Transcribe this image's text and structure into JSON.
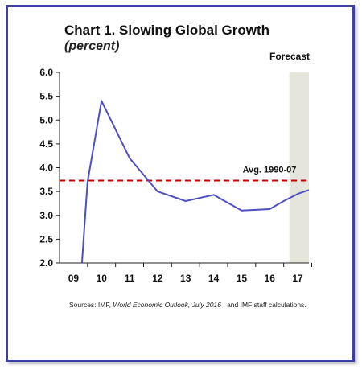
{
  "title": "Chart 1. Slowing Global Growth",
  "subtitle": "(percent)",
  "source": {
    "label": "Sources: IMF, ",
    "publication": "World Economic Outlook, July 2016",
    "rest": " ; and IMF staff calculations."
  },
  "colors": {
    "frame": "#3d3fa6",
    "series_line": "#4f4fc4",
    "average_line": "#c00000",
    "forecast_shade": "#e6e5dc"
  },
  "chart_data": {
    "type": "line",
    "x": [
      "09",
      "10",
      "11",
      "12",
      "13",
      "14",
      "15",
      "16",
      "17"
    ],
    "ylim": [
      2.0,
      6.0
    ],
    "yticks": [
      "2.0",
      "2.5",
      "3.0",
      "3.5",
      "4.0",
      "4.5",
      "5.0",
      "5.5",
      "6.0"
    ],
    "grid": false,
    "series": [
      {
        "points": [
          {
            "x": 2009.3,
            "y": 2.0
          },
          {
            "x": 2009.5,
            "y": 3.7
          },
          {
            "x": 2010.0,
            "y": 5.4
          },
          {
            "x": 2010.5,
            "y": 4.8
          },
          {
            "x": 2011.0,
            "y": 4.2
          },
          {
            "x": 2012.0,
            "y": 3.5
          },
          {
            "x": 2013.0,
            "y": 3.3
          },
          {
            "x": 2014.0,
            "y": 3.43
          },
          {
            "x": 2015.0,
            "y": 3.1
          },
          {
            "x": 2016.0,
            "y": 3.13
          },
          {
            "x": 2016.5,
            "y": 3.3
          },
          {
            "x": 2017.0,
            "y": 3.45
          },
          {
            "x": 2017.4,
            "y": 3.53
          }
        ]
      }
    ],
    "reference_line": {
      "label": "Avg. 1990-07",
      "y": 3.73
    },
    "forecast_region": {
      "label": "Forecast",
      "from": 2016.7,
      "to": 2017.4
    }
  }
}
